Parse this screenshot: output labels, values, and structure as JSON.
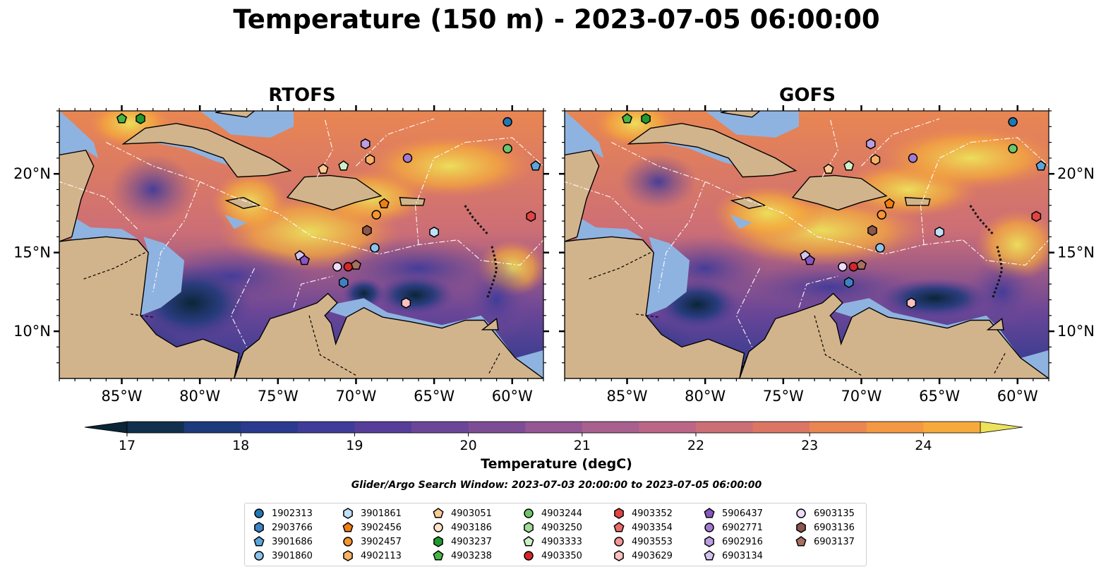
{
  "title": "Temperature (150 m) - 2023-07-05 06:00:00",
  "panels": [
    {
      "title": "RTOFS"
    },
    {
      "title": "GOFS"
    }
  ],
  "axes": {
    "lon_ticks": [
      "85°W",
      "80°W",
      "75°W",
      "70°W",
      "65°W",
      "60°W"
    ],
    "lon_values": [
      -85,
      -80,
      -75,
      -70,
      -65,
      -60
    ],
    "lat_ticks": [
      "20°N",
      "15°N",
      "10°N"
    ],
    "lat_values": [
      20,
      15,
      10
    ],
    "lon_range": [
      -89,
      -58
    ],
    "lat_range": [
      7,
      24
    ]
  },
  "colorbar": {
    "label": "Temperature (degC)",
    "ticks": [
      "17",
      "18",
      "19",
      "20",
      "21",
      "22",
      "23",
      "24"
    ],
    "tick_values": [
      17,
      18,
      19,
      20,
      21,
      22,
      23,
      24
    ],
    "range": [
      16.75,
      24.5
    ],
    "extend": "both",
    "colors": [
      "#0a2536",
      "#10304d",
      "#1d3a7a",
      "#2b3a8f",
      "#3f3b99",
      "#553d99",
      "#6b4697",
      "#7e4c95",
      "#955694",
      "#a8608e",
      "#bb6686",
      "#cc6e76",
      "#dc7664",
      "#e98652",
      "#f39843",
      "#f6aa3b",
      "#f4c44a",
      "#ece35b"
    ]
  },
  "colors": {
    "land": "#d2b48c",
    "shallow": "#8fb3e0",
    "ocean_cold": "#0a2536"
  },
  "search_window": "Glider/Argo Search Window: 2023-07-03 20:00:00 to 2023-07-05 06:00:00",
  "legend": [
    {
      "label": "1902313",
      "shape": "circle",
      "color": "#1f77b4"
    },
    {
      "label": "2903766",
      "shape": "hexagon",
      "color": "#3d82c4"
    },
    {
      "label": "3901686",
      "shape": "pentagon",
      "color": "#5aa6dc"
    },
    {
      "label": "3901860",
      "shape": "circle",
      "color": "#8cc2ec"
    },
    {
      "label": "3901861",
      "shape": "hexagon",
      "color": "#bfe0f7"
    },
    {
      "label": "3902456",
      "shape": "pentagon",
      "color": "#f07f10"
    },
    {
      "label": "3902457",
      "shape": "circle",
      "color": "#f5962f"
    },
    {
      "label": "4902113",
      "shape": "hexagon",
      "color": "#f8b266"
    },
    {
      "label": "4903051",
      "shape": "pentagon",
      "color": "#fbcb96"
    },
    {
      "label": "4903186",
      "shape": "circle",
      "color": "#fde3c8"
    },
    {
      "label": "4903237",
      "shape": "hexagon",
      "color": "#1f9a2f"
    },
    {
      "label": "4903238",
      "shape": "pentagon",
      "color": "#46b646"
    },
    {
      "label": "4903244",
      "shape": "circle",
      "color": "#6cc66a"
    },
    {
      "label": "4903250",
      "shape": "hexagon",
      "color": "#9fdc95"
    },
    {
      "label": "4903333",
      "shape": "pentagon",
      "color": "#cdf0c6"
    },
    {
      "label": "4903350",
      "shape": "circle",
      "color": "#d62728"
    },
    {
      "label": "4903352",
      "shape": "hexagon",
      "color": "#e04444"
    },
    {
      "label": "4903354",
      "shape": "pentagon",
      "color": "#ec6a6a"
    },
    {
      "label": "4903553",
      "shape": "circle",
      "color": "#f59595"
    },
    {
      "label": "4903629",
      "shape": "hexagon",
      "color": "#fcc0c0"
    },
    {
      "label": "5906437",
      "shape": "pentagon",
      "color": "#8856c4"
    },
    {
      "label": "6902771",
      "shape": "circle",
      "color": "#a37ad2"
    },
    {
      "label": "6902916",
      "shape": "hexagon",
      "color": "#bb9ee0"
    },
    {
      "label": "6903134",
      "shape": "pentagon",
      "color": "#d4c2ee"
    },
    {
      "label": "6903135",
      "shape": "circle",
      "color": "#efdcf8"
    },
    {
      "label": "6903136",
      "shape": "hexagon",
      "color": "#8c564b"
    },
    {
      "label": "6903137",
      "shape": "pentagon",
      "color": "#a8705f"
    }
  ],
  "markers": [
    {
      "id": "1902313",
      "lon": -60.3,
      "lat": 23.3
    },
    {
      "id": "4903244",
      "lon": -60.3,
      "lat": 21.6
    },
    {
      "id": "3901686",
      "lon": -58.5,
      "lat": 20.5
    },
    {
      "id": "4903238",
      "lon": -85.0,
      "lat": 23.5
    },
    {
      "id": "4903237",
      "lon": -83.8,
      "lat": 23.5
    },
    {
      "id": "6902916",
      "lon": -69.4,
      "lat": 21.9
    },
    {
      "id": "6902771",
      "lon": -66.7,
      "lat": 21.0
    },
    {
      "id": "4902113",
      "lon": -69.1,
      "lat": 20.9
    },
    {
      "id": "4903333",
      "lon": -70.8,
      "lat": 20.5
    },
    {
      "id": "4903051",
      "lon": -72.1,
      "lat": 20.3
    },
    {
      "id": "3902456",
      "lon": -68.2,
      "lat": 18.1
    },
    {
      "id": "3902457",
      "lon": -68.7,
      "lat": 17.4
    },
    {
      "id": "4903352",
      "lon": -58.8,
      "lat": 17.3
    },
    {
      "id": "6903136",
      "lon": -69.3,
      "lat": 16.4
    },
    {
      "id": "3901861",
      "lon": -65.0,
      "lat": 16.3
    },
    {
      "id": "3901860",
      "lon": -68.8,
      "lat": 15.3
    },
    {
      "id": "6903134",
      "lon": -73.6,
      "lat": 14.8
    },
    {
      "id": "5906437",
      "lon": -73.3,
      "lat": 14.5
    },
    {
      "id": "6903135",
      "lon": -71.2,
      "lat": 14.1
    },
    {
      "id": "4903350",
      "lon": -70.5,
      "lat": 14.1
    },
    {
      "id": "6903137",
      "lon": -70.0,
      "lat": 14.2
    },
    {
      "id": "2903766",
      "lon": -70.8,
      "lat": 13.1
    },
    {
      "id": "4903629",
      "lon": -66.8,
      "lat": 11.8
    }
  ]
}
